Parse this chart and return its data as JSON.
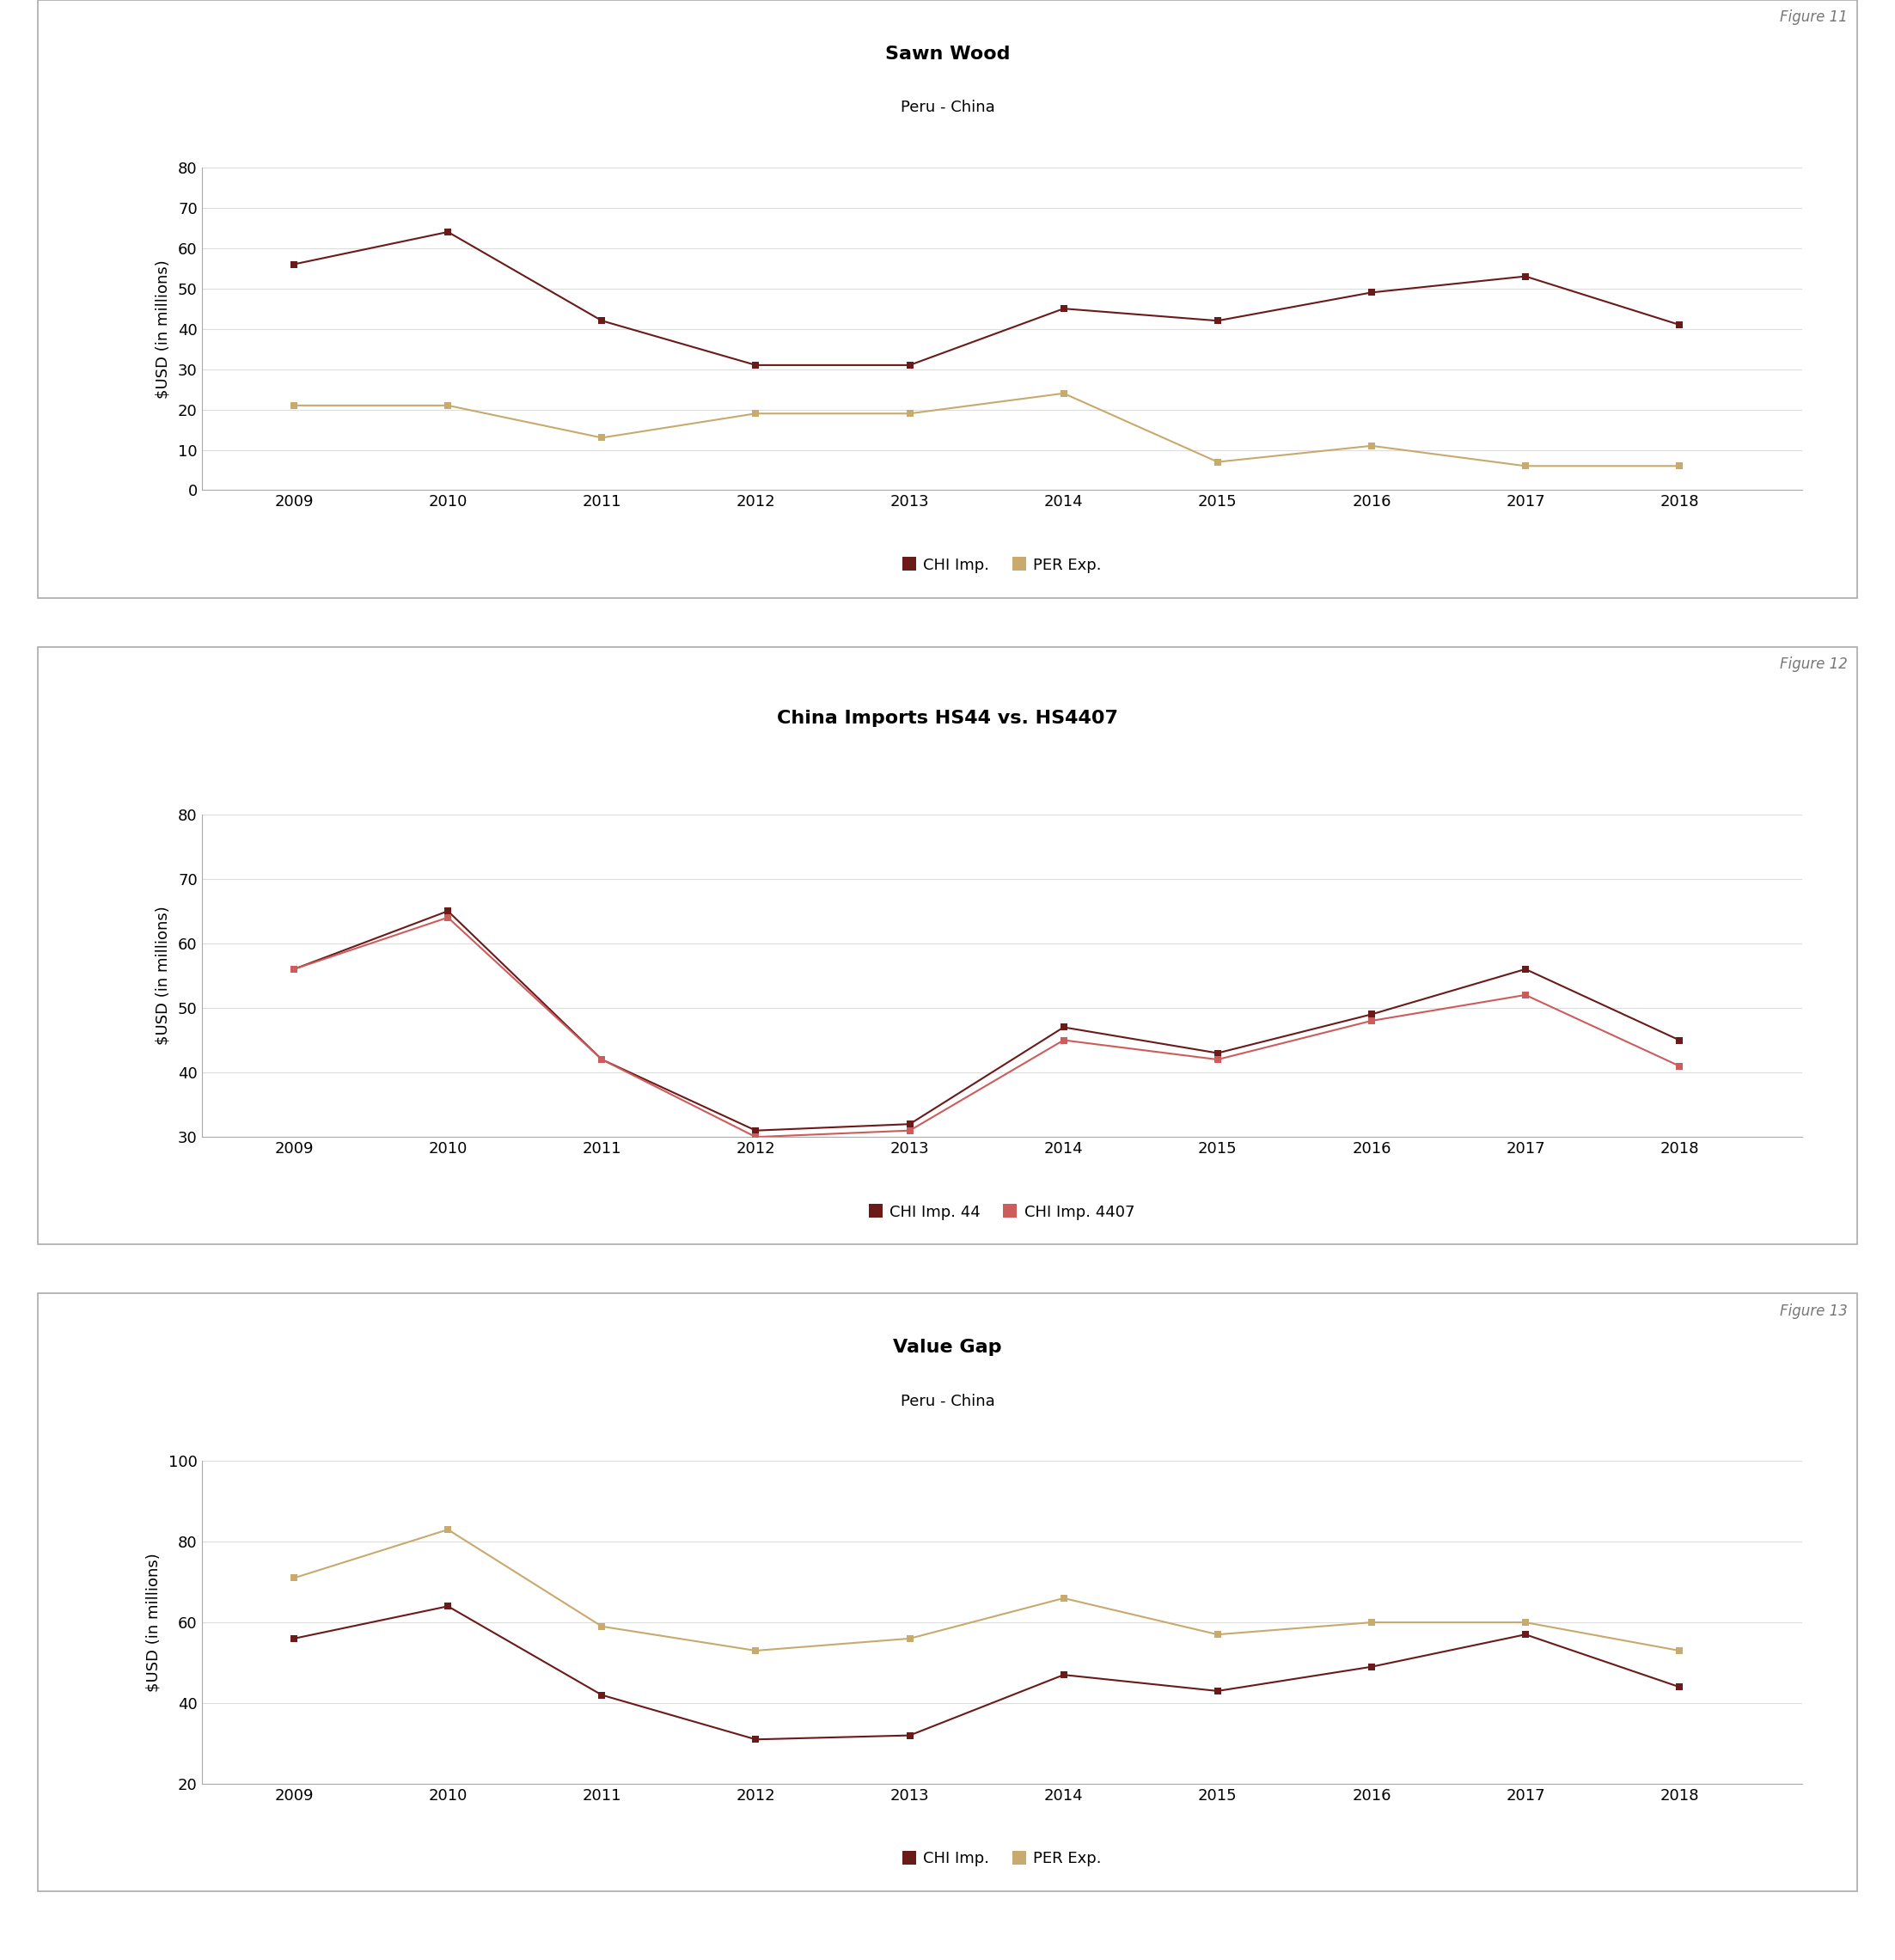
{
  "years": [
    2009,
    2010,
    2011,
    2012,
    2013,
    2014,
    2015,
    2016,
    2017,
    2018
  ],
  "fig11": {
    "title": "Sawn Wood",
    "subtitle": "Peru - China",
    "figure_label": "Figure 11",
    "chi_imp": [
      56,
      64,
      42,
      31,
      31,
      45,
      42,
      49,
      53,
      41
    ],
    "per_exp": [
      21,
      21,
      13,
      19,
      19,
      24,
      7,
      11,
      6,
      6
    ],
    "ylim": [
      0,
      80
    ],
    "yticks": [
      0,
      10,
      20,
      30,
      40,
      50,
      60,
      70,
      80
    ],
    "ylabel": "$USD (in millions)"
  },
  "fig12": {
    "title": "China Imports HS44 vs. HS4407",
    "figure_label": "Figure 12",
    "chi_imp_44": [
      56,
      65,
      42,
      31,
      32,
      47,
      43,
      49,
      56,
      45
    ],
    "chi_imp_4407": [
      56,
      64,
      42,
      30,
      31,
      45,
      42,
      48,
      52,
      41
    ],
    "ylim": [
      30,
      80
    ],
    "yticks": [
      30,
      40,
      50,
      60,
      70,
      80
    ],
    "ylabel": "$USD (in millions)"
  },
  "fig13": {
    "title": "Value Gap",
    "subtitle": "Peru - China",
    "figure_label": "Figure 13",
    "chi_imp": [
      56,
      64,
      42,
      31,
      32,
      47,
      43,
      49,
      57,
      44
    ],
    "per_exp": [
      71,
      83,
      59,
      53,
      56,
      66,
      57,
      60,
      60,
      53
    ],
    "ylim": [
      20,
      100
    ],
    "yticks": [
      20,
      40,
      60,
      80,
      100
    ],
    "ylabel": "$USD (in millions)"
  },
  "colors": {
    "dark_red": "#6B1A1A",
    "tan": "#C8A96E",
    "salmon": "#CD5C5C",
    "border": "#999999",
    "background": "#FFFFFF"
  },
  "marker_size": 6,
  "line_width": 1.5
}
